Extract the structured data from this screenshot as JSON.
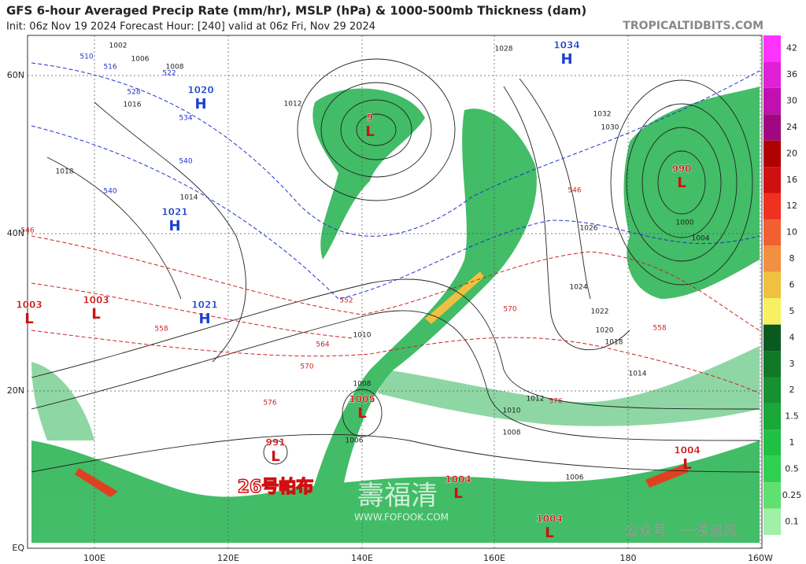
{
  "header": {
    "title": "GFS 6-hour Averaged Precip Rate (mm/hr), MSLP (hPa) & 1000-500mb Thickness (dam)",
    "subtitle": "Init: 06z Nov 19 2024   Forecast Hour: [240]   valid at 06z Fri, Nov 29 2024",
    "site": "TROPICALTIDBITS.COM"
  },
  "axes": {
    "lon_labels": [
      "100E",
      "120E",
      "140E",
      "160E",
      "180",
      "160W"
    ],
    "lat_labels": [
      "60N",
      "40N",
      "20N",
      "EQ"
    ]
  },
  "colorbar": {
    "labels": [
      "42",
      "36",
      "30",
      "24",
      "20",
      "16",
      "12",
      "10",
      "8",
      "6",
      "5",
      "4",
      "3",
      "2",
      "1.5",
      "1",
      "0.5",
      "0.25",
      "0.1"
    ],
    "colors": [
      "#ff33ff",
      "#e020d8",
      "#c010b0",
      "#a00880",
      "#b00000",
      "#d01010",
      "#f03020",
      "#f06030",
      "#f09040",
      "#f0c040",
      "#f8f060",
      "#0a5a20",
      "#107828",
      "#169030",
      "#1aa83a",
      "#20c044",
      "#30d050",
      "#60e070",
      "#a0f0a8"
    ]
  },
  "centers": [
    {
      "symbol": "H",
      "pressure": "1020"
    },
    {
      "symbol": "H",
      "pressure": "1034"
    },
    {
      "symbol": "L",
      "pressure": "9"
    },
    {
      "symbol": "L",
      "pressure": "990"
    },
    {
      "symbol": "H",
      "pressure": "1021"
    },
    {
      "symbol": "H",
      "pressure": "1021"
    },
    {
      "symbol": "L",
      "pressure": "1003"
    },
    {
      "symbol": "L",
      "pressure": "1003"
    },
    {
      "symbol": "L",
      "pressure": "1005"
    },
    {
      "symbol": "L",
      "pressure": "991"
    },
    {
      "symbol": "L",
      "pressure": "1004"
    },
    {
      "symbol": "L",
      "pressure": "1004"
    },
    {
      "symbol": "L",
      "pressure": "1004"
    }
  ],
  "isobar_labels": [
    "1002",
    "1006",
    "1008",
    "1012",
    "1016",
    "1014",
    "1018",
    "1024",
    "1026",
    "1022",
    "1020",
    "1018",
    "1014",
    "1010",
    "1012",
    "1010",
    "1008",
    "1006",
    "1006",
    "1008",
    "1028",
    "1032",
    "1030",
    "1000",
    "1004"
  ],
  "thickness_labels": [
    "510",
    "516",
    "522",
    "528",
    "534",
    "540",
    "540",
    "546",
    "552",
    "558",
    "564",
    "570",
    "576",
    "546",
    "570",
    "558",
    "576"
  ],
  "annotation": "26号帕布",
  "watermarks": [
    "壽福清",
    "WWW.FOFOOK.COM",
    "公众号 · 一浅追风"
  ]
}
